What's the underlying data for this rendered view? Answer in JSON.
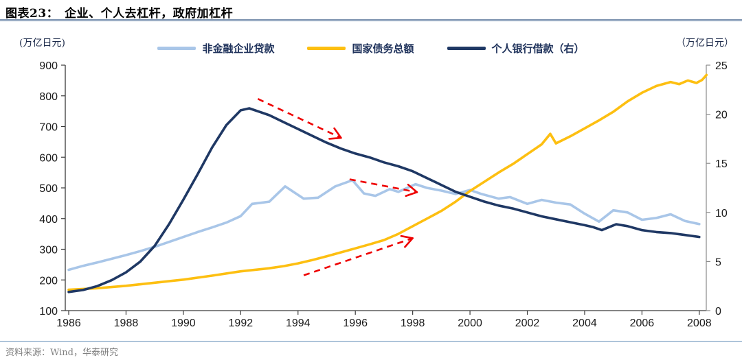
{
  "header": {
    "title": "图表23：　企业、个人去杠杆，政府加杠杆"
  },
  "footer": {
    "source": "资料来源：Wind，华泰研究"
  },
  "chart_data": {
    "type": "line",
    "title": "企业、个人去杠杆，政府加杠杆",
    "left_axis": {
      "unit": "(万亿日元)",
      "min": 100,
      "max": 900,
      "ticks": [
        100,
        200,
        300,
        400,
        500,
        600,
        700,
        800,
        900
      ]
    },
    "right_axis": {
      "unit": "（万亿日元）",
      "min": 0,
      "max": 25,
      "ticks": [
        0,
        5,
        10,
        15,
        20,
        25
      ]
    },
    "x_axis": {
      "min": 1985.88,
      "max": 2008.3,
      "ticks": [
        1986,
        1988,
        1990,
        1992,
        1994,
        1996,
        1998,
        2000,
        2002,
        2004,
        2006,
        2008
      ]
    },
    "grid": false,
    "legend_position": "top",
    "series": [
      {
        "name": "非金融企业贷款",
        "color": "#A9C6E8",
        "axis": "left",
        "points": [
          [
            1986,
            233
          ],
          [
            1986.5,
            246
          ],
          [
            1987,
            257
          ],
          [
            1987.5,
            269
          ],
          [
            1988,
            281
          ],
          [
            1988.5,
            294
          ],
          [
            1989,
            308
          ],
          [
            1989.5,
            324
          ],
          [
            1990,
            340
          ],
          [
            1990.5,
            356
          ],
          [
            1991,
            371
          ],
          [
            1991.5,
            387
          ],
          [
            1992,
            408
          ],
          [
            1992.4,
            448
          ],
          [
            1993,
            455
          ],
          [
            1993.55,
            505
          ],
          [
            1994.2,
            465
          ],
          [
            1994.7,
            468
          ],
          [
            1995.3,
            505
          ],
          [
            1995.9,
            525
          ],
          [
            1996.3,
            482
          ],
          [
            1996.7,
            474
          ],
          [
            1997.2,
            496
          ],
          [
            1997.5,
            487
          ],
          [
            1998.1,
            512
          ],
          [
            1998.5,
            500
          ],
          [
            1999,
            491
          ],
          [
            1999.5,
            480
          ],
          [
            2000,
            493
          ],
          [
            2000.4,
            480
          ],
          [
            2001,
            465
          ],
          [
            2001.4,
            470
          ],
          [
            2002,
            448
          ],
          [
            2002.5,
            461
          ],
          [
            2003,
            452
          ],
          [
            2003.5,
            446
          ],
          [
            2004,
            416
          ],
          [
            2004.5,
            390
          ],
          [
            2005,
            427
          ],
          [
            2005.5,
            420
          ],
          [
            2006,
            396
          ],
          [
            2006.5,
            402
          ],
          [
            2007,
            414
          ],
          [
            2007.5,
            392
          ],
          [
            2008,
            382
          ]
        ]
      },
      {
        "name": "国家债务总额",
        "color": "#FDBF11",
        "axis": "left",
        "points": [
          [
            1986,
            168
          ],
          [
            1987,
            173
          ],
          [
            1988,
            181
          ],
          [
            1989,
            191
          ],
          [
            1990,
            201
          ],
          [
            1991,
            214
          ],
          [
            1992,
            228
          ],
          [
            1993,
            238
          ],
          [
            1993.5,
            245
          ],
          [
            1994,
            254
          ],
          [
            1994.5,
            265
          ],
          [
            1995,
            277
          ],
          [
            1995.5,
            290
          ],
          [
            1996,
            303
          ],
          [
            1996.5,
            316
          ],
          [
            1997,
            330
          ],
          [
            1997.5,
            350
          ],
          [
            1998,
            375
          ],
          [
            1998.5,
            400
          ],
          [
            1999,
            425
          ],
          [
            1999.5,
            455
          ],
          [
            2000,
            490
          ],
          [
            2000.5,
            520
          ],
          [
            2001,
            550
          ],
          [
            2001.5,
            578
          ],
          [
            2002,
            610
          ],
          [
            2002.5,
            642
          ],
          [
            2002.8,
            676
          ],
          [
            2003,
            645
          ],
          [
            2003.5,
            668
          ],
          [
            2004,
            694
          ],
          [
            2004.5,
            720
          ],
          [
            2005,
            748
          ],
          [
            2005.5,
            782
          ],
          [
            2006,
            810
          ],
          [
            2006.5,
            832
          ],
          [
            2007,
            845
          ],
          [
            2007.3,
            838
          ],
          [
            2007.6,
            850
          ],
          [
            2007.9,
            842
          ],
          [
            2008.1,
            852
          ],
          [
            2008.25,
            868
          ]
        ]
      },
      {
        "name": "个人银行借款（右）",
        "color": "#1F3864",
        "axis": "right",
        "points": [
          [
            1986,
            1.9
          ],
          [
            1986.5,
            2.1
          ],
          [
            1987,
            2.5
          ],
          [
            1987.5,
            3.1
          ],
          [
            1988,
            3.9
          ],
          [
            1988.5,
            5.0
          ],
          [
            1989,
            6.6
          ],
          [
            1989.5,
            8.8
          ],
          [
            1990,
            11.3
          ],
          [
            1990.5,
            13.9
          ],
          [
            1991,
            16.6
          ],
          [
            1991.5,
            18.9
          ],
          [
            1992,
            20.4
          ],
          [
            1992.3,
            20.6
          ],
          [
            1992.7,
            20.2
          ],
          [
            1993,
            19.9
          ],
          [
            1993.5,
            19.2
          ],
          [
            1994,
            18.5
          ],
          [
            1994.5,
            17.8
          ],
          [
            1995,
            17.1
          ],
          [
            1995.5,
            16.5
          ],
          [
            1996,
            16.0
          ],
          [
            1996.5,
            15.6
          ],
          [
            1997,
            15.1
          ],
          [
            1997.5,
            14.7
          ],
          [
            1998,
            14.2
          ],
          [
            1998.5,
            13.5
          ],
          [
            1999,
            12.8
          ],
          [
            1999.5,
            12.1
          ],
          [
            2000,
            11.6
          ],
          [
            2000.5,
            11.1
          ],
          [
            2001,
            10.7
          ],
          [
            2001.5,
            10.4
          ],
          [
            2002,
            10.0
          ],
          [
            2002.5,
            9.6
          ],
          [
            2003,
            9.3
          ],
          [
            2003.5,
            9.0
          ],
          [
            2004,
            8.7
          ],
          [
            2004.3,
            8.5
          ],
          [
            2004.6,
            8.2
          ],
          [
            2005.1,
            8.8
          ],
          [
            2005.5,
            8.6
          ],
          [
            2006,
            8.2
          ],
          [
            2006.5,
            8.0
          ],
          [
            2007,
            7.9
          ],
          [
            2007.5,
            7.7
          ],
          [
            2008,
            7.5
          ]
        ]
      }
    ],
    "annotations": {
      "arrow_color": "#EE0000",
      "arrows": [
        {
          "from": [
            1992.6,
            790
          ],
          "to": [
            1995.5,
            663
          ]
        },
        {
          "from": [
            1995.8,
            528
          ],
          "to": [
            1998.15,
            486
          ]
        },
        {
          "from": [
            1994.2,
            215
          ],
          "to": [
            1998.0,
            336
          ]
        }
      ]
    }
  }
}
